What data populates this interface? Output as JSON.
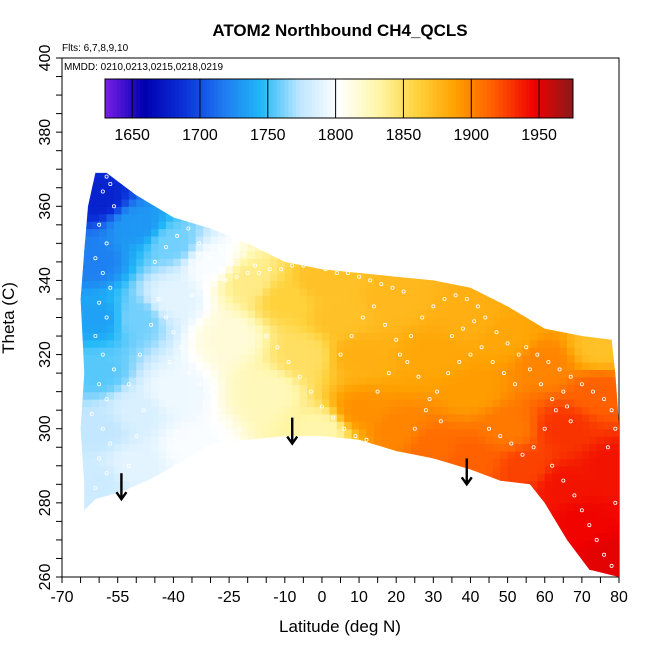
{
  "chart_data": {
    "type": "heatmap",
    "title": "ATOM2 Northbound CH4_QCLS",
    "xlabel": "Latitude (deg N)",
    "ylabel": "Theta (C)",
    "notes": [
      "Flts: 6,7,8,9,10",
      "MMDD: 0210,0213,0215,0218,0219"
    ],
    "xlim": [
      -70,
      80
    ],
    "ylim": [
      260,
      400
    ],
    "x_ticks": [
      -70,
      -55,
      -40,
      -25,
      -10,
      0,
      10,
      20,
      30,
      40,
      50,
      60,
      70,
      80
    ],
    "y_ticks": [
      260,
      280,
      300,
      320,
      340,
      360,
      380,
      400
    ],
    "colorbar": {
      "range": [
        1630,
        1975
      ],
      "ticks": [
        1650,
        1700,
        1750,
        1800,
        1850,
        1900,
        1950
      ],
      "colors": [
        "#7a1fe8",
        "#0000b0",
        "#0a2fd8",
        "#1e78f0",
        "#20b8f8",
        "#bfe6ff",
        "#ffffff",
        "#fff6a8",
        "#ffd23c",
        "#ffa000",
        "#ff5a00",
        "#f00000",
        "#8b1a1a"
      ]
    },
    "domain_outline": [
      [
        -64,
        278
      ],
      [
        -61,
        281
      ],
      [
        -54,
        283
      ],
      [
        -47,
        286
      ],
      [
        -36,
        292
      ],
      [
        -30,
        296
      ],
      [
        -20,
        297
      ],
      [
        -10,
        298
      ],
      [
        0,
        298
      ],
      [
        10,
        297
      ],
      [
        20,
        294
      ],
      [
        30,
        292
      ],
      [
        40,
        289
      ],
      [
        48,
        286
      ],
      [
        56,
        285
      ],
      [
        60,
        280
      ],
      [
        66,
        270
      ],
      [
        72,
        262
      ],
      [
        80,
        260
      ],
      [
        80,
        301
      ],
      [
        79,
        315
      ],
      [
        78,
        324
      ],
      [
        70,
        325
      ],
      [
        60,
        327
      ],
      [
        50,
        333
      ],
      [
        40,
        338
      ],
      [
        30,
        340
      ],
      [
        20,
        341
      ],
      [
        10,
        342
      ],
      [
        0,
        343
      ],
      [
        -10,
        345
      ],
      [
        -20,
        350
      ],
      [
        -30,
        354
      ],
      [
        -40,
        357
      ],
      [
        -50,
        363
      ],
      [
        -58,
        369
      ],
      [
        -61,
        369
      ],
      [
        -63,
        360
      ],
      [
        -64,
        348
      ],
      [
        -65,
        335
      ],
      [
        -64,
        315
      ],
      [
        -65,
        300
      ],
      [
        -64,
        285
      ]
    ],
    "field_points": [
      {
        "lat": -60,
        "theta": 362,
        "value": 1680
      },
      {
        "lat": -62,
        "theta": 345,
        "value": 1720
      },
      {
        "lat": -60,
        "theta": 330,
        "value": 1735
      },
      {
        "lat": -60,
        "theta": 315,
        "value": 1755
      },
      {
        "lat": -60,
        "theta": 300,
        "value": 1775
      },
      {
        "lat": -60,
        "theta": 285,
        "value": 1780
      },
      {
        "lat": -50,
        "theta": 355,
        "value": 1730
      },
      {
        "lat": -50,
        "theta": 330,
        "value": 1760
      },
      {
        "lat": -50,
        "theta": 305,
        "value": 1785
      },
      {
        "lat": -50,
        "theta": 290,
        "value": 1790
      },
      {
        "lat": -40,
        "theta": 350,
        "value": 1760
      },
      {
        "lat": -40,
        "theta": 335,
        "value": 1790
      },
      {
        "lat": -40,
        "theta": 310,
        "value": 1795
      },
      {
        "lat": -35,
        "theta": 295,
        "value": 1800
      },
      {
        "lat": -30,
        "theta": 345,
        "value": 1800
      },
      {
        "lat": -25,
        "theta": 325,
        "value": 1815
      },
      {
        "lat": -20,
        "theta": 340,
        "value": 1840
      },
      {
        "lat": -15,
        "theta": 310,
        "value": 1825
      },
      {
        "lat": -10,
        "theta": 335,
        "value": 1860
      },
      {
        "lat": -5,
        "theta": 320,
        "value": 1850
      },
      {
        "lat": 0,
        "theta": 340,
        "value": 1870
      },
      {
        "lat": 0,
        "theta": 300,
        "value": 1830
      },
      {
        "lat": 5,
        "theta": 330,
        "value": 1870
      },
      {
        "lat": 10,
        "theta": 305,
        "value": 1895
      },
      {
        "lat": 10,
        "theta": 320,
        "value": 1880
      },
      {
        "lat": 20,
        "theta": 335,
        "value": 1875
      },
      {
        "lat": 20,
        "theta": 300,
        "value": 1900
      },
      {
        "lat": 30,
        "theta": 320,
        "value": 1885
      },
      {
        "lat": 30,
        "theta": 295,
        "value": 1910
      },
      {
        "lat": 40,
        "theta": 330,
        "value": 1880
      },
      {
        "lat": 40,
        "theta": 310,
        "value": 1890
      },
      {
        "lat": 40,
        "theta": 292,
        "value": 1915
      },
      {
        "lat": 50,
        "theta": 325,
        "value": 1885
      },
      {
        "lat": 50,
        "theta": 300,
        "value": 1905
      },
      {
        "lat": 55,
        "theta": 290,
        "value": 1925
      },
      {
        "lat": 60,
        "theta": 318,
        "value": 1900
      },
      {
        "lat": 65,
        "theta": 300,
        "value": 1930
      },
      {
        "lat": 65,
        "theta": 285,
        "value": 1940
      },
      {
        "lat": 70,
        "theta": 275,
        "value": 1945
      },
      {
        "lat": 75,
        "theta": 310,
        "value": 1915
      },
      {
        "lat": 78,
        "theta": 290,
        "value": 1940
      },
      {
        "lat": 78,
        "theta": 265,
        "value": 1950
      },
      {
        "lat": 75,
        "theta": 322,
        "value": 1870
      }
    ],
    "arrows": [
      {
        "lat": -54,
        "theta_start": 288,
        "theta_end": 281
      },
      {
        "lat": -8,
        "theta_start": 303,
        "theta_end": 296
      },
      {
        "lat": 39,
        "theta_start": 292,
        "theta_end": 285
      }
    ],
    "obs_points": [
      [
        -58,
        368
      ],
      [
        -57,
        366
      ],
      [
        -59,
        364
      ],
      [
        -56,
        360
      ],
      [
        -60,
        355
      ],
      [
        -58,
        350
      ],
      [
        -61,
        346
      ],
      [
        -59,
        342
      ],
      [
        -57,
        338
      ],
      [
        -60,
        334
      ],
      [
        -58,
        330
      ],
      [
        -61,
        325
      ],
      [
        -59,
        320
      ],
      [
        -56,
        316
      ],
      [
        -60,
        312
      ],
      [
        -58,
        308
      ],
      [
        -62,
        304
      ],
      [
        -59,
        300
      ],
      [
        -57,
        296
      ],
      [
        -60,
        292
      ],
      [
        -58,
        288
      ],
      [
        -61,
        284
      ],
      [
        -55,
        282
      ],
      [
        -52,
        290
      ],
      [
        -50,
        298
      ],
      [
        -48,
        305
      ],
      [
        -52,
        312
      ],
      [
        -49,
        320
      ],
      [
        -46,
        328
      ],
      [
        -44,
        335
      ],
      [
        -42,
        330
      ],
      [
        -40,
        326
      ],
      [
        -38,
        322
      ],
      [
        -41,
        318
      ],
      [
        -36,
        315
      ],
      [
        -33,
        312
      ],
      [
        -30,
        310
      ],
      [
        -28,
        305
      ],
      [
        -25,
        302
      ],
      [
        -22,
        300
      ],
      [
        -35,
        336
      ],
      [
        -32,
        338
      ],
      [
        -29,
        339
      ],
      [
        -26,
        340
      ],
      [
        -23,
        341
      ],
      [
        -20,
        342
      ],
      [
        -17,
        342
      ],
      [
        -14,
        343
      ],
      [
        -11,
        343
      ],
      [
        -8,
        344
      ],
      [
        -5,
        344
      ],
      [
        -2,
        344
      ],
      [
        1,
        343
      ],
      [
        4,
        342
      ],
      [
        7,
        342
      ],
      [
        10,
        341
      ],
      [
        13,
        340
      ],
      [
        16,
        339
      ],
      [
        19,
        338
      ],
      [
        22,
        337
      ],
      [
        -15,
        325
      ],
      [
        -12,
        322
      ],
      [
        -9,
        318
      ],
      [
        -6,
        314
      ],
      [
        -3,
        310
      ],
      [
        0,
        306
      ],
      [
        3,
        303
      ],
      [
        6,
        300
      ],
      [
        9,
        298
      ],
      [
        12,
        297
      ],
      [
        15,
        310
      ],
      [
        18,
        315
      ],
      [
        21,
        320
      ],
      [
        24,
        325
      ],
      [
        27,
        330
      ],
      [
        30,
        333
      ],
      [
        33,
        335
      ],
      [
        36,
        336
      ],
      [
        39,
        335
      ],
      [
        42,
        333
      ],
      [
        25,
        300
      ],
      [
        28,
        305
      ],
      [
        31,
        310
      ],
      [
        34,
        315
      ],
      [
        37,
        318
      ],
      [
        40,
        320
      ],
      [
        43,
        322
      ],
      [
        46,
        318
      ],
      [
        49,
        315
      ],
      [
        52,
        312
      ],
      [
        45,
        300
      ],
      [
        48,
        298
      ],
      [
        51,
        296
      ],
      [
        54,
        293
      ],
      [
        57,
        295
      ],
      [
        60,
        300
      ],
      [
        63,
        305
      ],
      [
        65,
        310
      ],
      [
        66,
        306
      ],
      [
        67,
        302
      ],
      [
        55,
        322
      ],
      [
        58,
        320
      ],
      [
        61,
        318
      ],
      [
        64,
        316
      ],
      [
        67,
        314
      ],
      [
        70,
        312
      ],
      [
        73,
        310
      ],
      [
        76,
        308
      ],
      [
        78,
        305
      ],
      [
        79,
        300
      ],
      [
        62,
        290
      ],
      [
        65,
        286
      ],
      [
        68,
        282
      ],
      [
        70,
        278
      ],
      [
        72,
        274
      ],
      [
        74,
        270
      ],
      [
        76,
        266
      ],
      [
        78,
        263
      ],
      [
        79,
        280
      ],
      [
        77,
        295
      ],
      [
        5,
        320
      ],
      [
        8,
        325
      ],
      [
        11,
        330
      ],
      [
        14,
        333
      ],
      [
        17,
        328
      ],
      [
        20,
        324
      ],
      [
        23,
        318
      ],
      [
        26,
        314
      ],
      [
        29,
        308
      ],
      [
        32,
        302
      ],
      [
        -45,
        345
      ],
      [
        -42,
        349
      ],
      [
        -39,
        352
      ],
      [
        -36,
        354
      ],
      [
        -33,
        350
      ],
      [
        -30,
        346
      ],
      [
        -27,
        348
      ],
      [
        -24,
        345
      ],
      [
        -21,
        347
      ],
      [
        -18,
        344
      ],
      [
        35,
        325
      ],
      [
        38,
        327
      ],
      [
        41,
        329
      ],
      [
        44,
        330
      ],
      [
        47,
        326
      ],
      [
        50,
        323
      ],
      [
        53,
        320
      ],
      [
        56,
        316
      ],
      [
        59,
        312
      ],
      [
        62,
        308
      ]
    ]
  }
}
